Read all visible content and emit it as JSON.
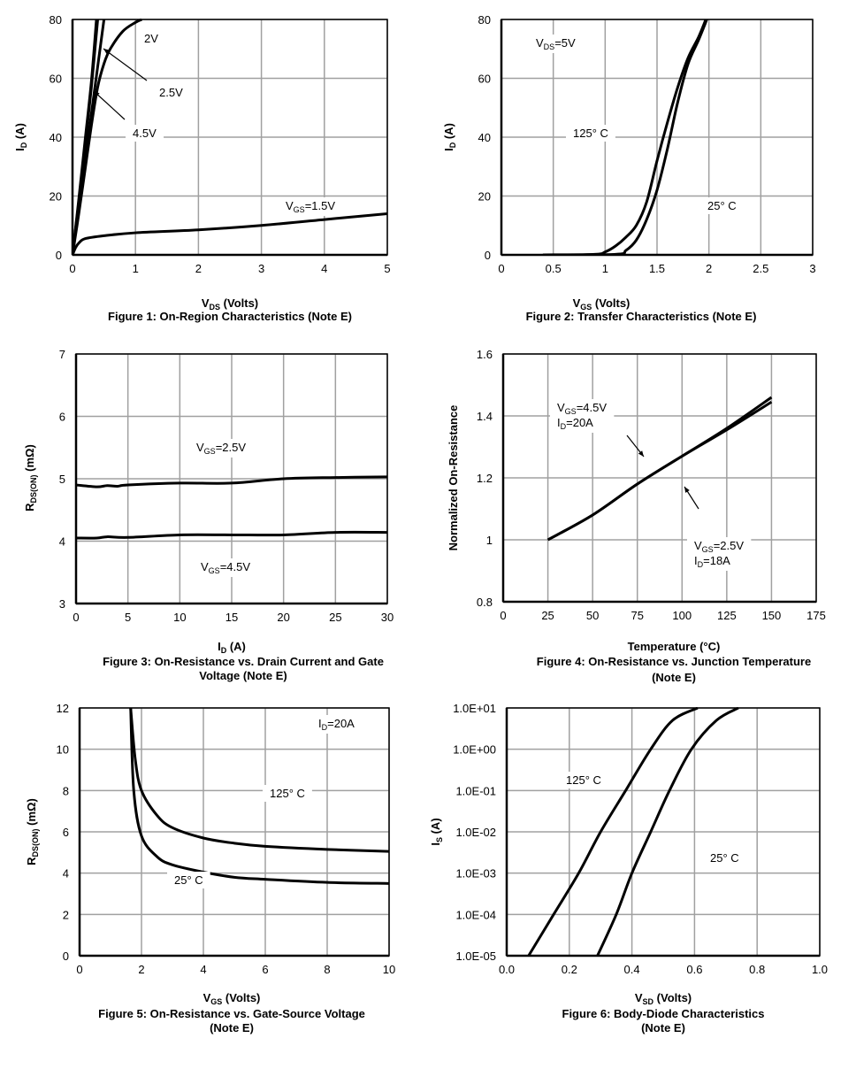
{
  "chart_data": [
    {
      "type": "line",
      "caption": [
        "Figure 1: On-Region Characteristics (Note E)"
      ],
      "xlabel": {
        "base": "V",
        "sub": "DS",
        "tail": " (Volts)"
      },
      "ylabel": {
        "base": "I",
        "sub": "D",
        "tail": " (A)"
      },
      "xlim": [
        0,
        5
      ],
      "ylim": [
        0,
        80
      ],
      "xticks": [
        0,
        1,
        2,
        3,
        4,
        5
      ],
      "yticks": [
        0,
        20,
        40,
        60,
        80
      ],
      "xtick_labels": [
        "0",
        "1",
        "2",
        "3",
        "4",
        "5"
      ],
      "ytick_labels": [
        "0",
        "20",
        "40",
        "60",
        "80"
      ],
      "grid": true,
      "series": [
        {
          "name": "4.5V",
          "x": [
            0,
            0.1,
            0.2,
            0.3,
            0.38
          ],
          "y": [
            0,
            19,
            39,
            59,
            80
          ]
        },
        {
          "x": [
            0,
            0.1,
            0.2,
            0.3,
            0.4
          ],
          "y": [
            0,
            18,
            37,
            57,
            80
          ]
        },
        {
          "name": "2.5V",
          "x": [
            0,
            0.1,
            0.2,
            0.3,
            0.4,
            0.5
          ],
          "y": [
            0,
            16,
            32,
            48,
            64,
            80
          ]
        },
        {
          "name": "2V",
          "x": [
            0,
            0.1,
            0.2,
            0.3,
            0.4,
            0.5,
            0.6,
            0.8,
            1.0,
            1.1
          ],
          "y": [
            0,
            14,
            29,
            44,
            57,
            65,
            70,
            76,
            79,
            80
          ]
        },
        {
          "name": "VGS=1.5V",
          "x": [
            0,
            0.05,
            0.1,
            0.2,
            0.5,
            1,
            2,
            3,
            4,
            5
          ],
          "y": [
            0,
            2.5,
            4,
            5.5,
            6.5,
            7.5,
            8.5,
            10,
            12,
            14
          ]
        }
      ],
      "annotations": [
        {
          "base": "2V"
        },
        {
          "base": "2.5V"
        },
        {
          "base": "4.5V"
        },
        {
          "base": "V",
          "sub": "GS",
          "tail": "=1.5V"
        }
      ]
    },
    {
      "type": "line",
      "caption": [
        "Figure 2: Transfer Characteristics (Note E)"
      ],
      "xlabel": {
        "base": "V",
        "sub": "GS",
        "tail": " (Volts)"
      },
      "ylabel": {
        "base": "I",
        "sub": "D",
        "tail": " (A)"
      },
      "xlim": [
        0,
        3
      ],
      "ylim": [
        0,
        80
      ],
      "xticks": [
        0,
        0.5,
        1,
        1.5,
        2,
        2.5,
        3
      ],
      "yticks": [
        0,
        20,
        40,
        60,
        80
      ],
      "xtick_labels": [
        "0",
        "0.5",
        "1",
        "1.5",
        "2",
        "2.5",
        "3"
      ],
      "ytick_labels": [
        "0",
        "20",
        "40",
        "60",
        "80"
      ],
      "grid": true,
      "series": [
        {
          "name": "125° C",
          "x": [
            0.4,
            0.9,
            1.0,
            1.1,
            1.2,
            1.3,
            1.4,
            1.5,
            1.6,
            1.7,
            1.8,
            1.9,
            1.97
          ],
          "y": [
            0,
            0.2,
            1,
            3,
            6,
            10,
            18,
            32,
            45,
            57,
            67,
            74,
            80
          ]
        },
        {
          "name": "25° C",
          "x": [
            0.4,
            1.1,
            1.2,
            1.3,
            1.4,
            1.5,
            1.6,
            1.7,
            1.8,
            1.9,
            1.98
          ],
          "y": [
            0,
            0.2,
            1.5,
            5,
            12,
            22,
            36,
            52,
            65,
            73,
            80
          ]
        }
      ],
      "annotations": [
        {
          "base": "V",
          "sub": "DS",
          "tail": "=5V"
        },
        {
          "base": "125° C"
        },
        {
          "base": "25° C"
        }
      ]
    },
    {
      "type": "line",
      "caption": [
        "Figure 3: On-Resistance vs. Drain Current and Gate",
        "Voltage (Note E)"
      ],
      "xlabel": {
        "base": "I",
        "sub": "D",
        "tail": " (A)"
      },
      "ylabel": {
        "base": "R",
        "sub": "DS(ON)",
        "tail": " (mΩ)"
      },
      "xlim": [
        0,
        30
      ],
      "ylim": [
        3,
        7
      ],
      "xticks": [
        0,
        5,
        10,
        15,
        20,
        25,
        30
      ],
      "yticks": [
        3,
        4,
        5,
        6,
        7
      ],
      "xtick_labels": [
        "0",
        "5",
        "10",
        "15",
        "20",
        "25",
        "30"
      ],
      "ytick_labels": [
        "3",
        "4",
        "5",
        "6",
        "7"
      ],
      "grid": true,
      "series": [
        {
          "name": "VGS=2.5V",
          "x": [
            0,
            2,
            3,
            4,
            5,
            10,
            15,
            20,
            25,
            30
          ],
          "y": [
            4.9,
            4.87,
            4.89,
            4.88,
            4.9,
            4.93,
            4.93,
            5.0,
            5.02,
            5.03
          ]
        },
        {
          "name": "VGS=4.5V",
          "x": [
            0,
            2,
            3,
            5,
            10,
            15,
            20,
            25,
            30
          ],
          "y": [
            4.05,
            4.05,
            4.07,
            4.06,
            4.1,
            4.1,
            4.1,
            4.14,
            4.14
          ]
        }
      ],
      "annotations": [
        {
          "base": "V",
          "sub": "GS",
          "tail": "=2.5V"
        },
        {
          "base": "V",
          "sub": "GS",
          "tail": "=4.5V"
        }
      ]
    },
    {
      "type": "line",
      "caption": [
        "Figure 4: On-Resistance vs. Junction Temperature",
        "(Note E)"
      ],
      "xlabel": {
        "base": "Temperature (°C)"
      },
      "ylabel": {
        "base": "Normalized On-Resistance"
      },
      "xlim": [
        0,
        175
      ],
      "ylim": [
        0.8,
        1.6
      ],
      "xticks": [
        0,
        25,
        50,
        75,
        100,
        125,
        150,
        175
      ],
      "yticks": [
        0.8,
        1,
        1.2,
        1.4,
        1.6
      ],
      "xtick_labels": [
        "0",
        "25",
        "50",
        "75",
        "100",
        "125",
        "150",
        "175"
      ],
      "ytick_labels": [
        "0.8",
        "1",
        "1.2",
        "1.4",
        "1.6"
      ],
      "grid": true,
      "series": [
        {
          "name": "VGS=4.5V ID=20A",
          "x": [
            25,
            50,
            75,
            100,
            125,
            150
          ],
          "y": [
            1.0,
            1.08,
            1.18,
            1.27,
            1.36,
            1.46
          ]
        },
        {
          "name": "VGS=2.5V ID=18A",
          "x": [
            25,
            50,
            75,
            100,
            125,
            150
          ],
          "y": [
            1.0,
            1.08,
            1.18,
            1.27,
            1.355,
            1.445
          ]
        }
      ],
      "annotations": [
        {
          "base": "V",
          "sub": "GS",
          "tail": "=4.5V"
        },
        {
          "base": "I",
          "sub": "D",
          "tail": "=20A"
        },
        {
          "base": "V",
          "sub": "GS",
          "tail": "=2.5V"
        },
        {
          "base": "I",
          "sub": "D",
          "tail": "=18A"
        }
      ]
    },
    {
      "type": "line",
      "caption": [
        "Figure 5: On-Resistance vs. Gate-Source Voltage",
        "(Note E)"
      ],
      "xlabel": {
        "base": "V",
        "sub": "GS",
        "tail": " (Volts)"
      },
      "ylabel": {
        "base": "R",
        "sub": "DS(ON)",
        "tail": " (mΩ)"
      },
      "xlim": [
        0,
        10
      ],
      "ylim": [
        0,
        12
      ],
      "xticks": [
        0,
        2,
        4,
        6,
        8,
        10
      ],
      "yticks": [
        0,
        2,
        4,
        6,
        8,
        10,
        12
      ],
      "xtick_labels": [
        "0",
        "2",
        "4",
        "6",
        "8",
        "10"
      ],
      "ytick_labels": [
        "0",
        "2",
        "4",
        "6",
        "8",
        "10",
        "12"
      ],
      "grid": true,
      "series": [
        {
          "name": "125° C",
          "x": [
            1.65,
            1.8,
            2,
            2.5,
            3,
            4,
            5,
            6,
            8,
            10
          ],
          "y": [
            12,
            9.5,
            8,
            6.8,
            6.2,
            5.7,
            5.45,
            5.3,
            5.15,
            5.05
          ]
        },
        {
          "name": "25° C",
          "x": [
            1.65,
            1.75,
            2,
            2.5,
            3,
            4,
            5,
            6,
            8,
            10
          ],
          "y": [
            12,
            8,
            5.8,
            4.8,
            4.4,
            4.05,
            3.8,
            3.7,
            3.55,
            3.5
          ]
        }
      ],
      "annotations": [
        {
          "base": "I",
          "sub": "D",
          "tail": "=20A"
        },
        {
          "base": "125° C"
        },
        {
          "base": "25° C"
        }
      ]
    },
    {
      "type": "line",
      "caption": [
        "Figure 6: Body-Diode Characteristics",
        "(Note E)"
      ],
      "xlabel": {
        "base": "V",
        "sub": "SD",
        "tail": " (Volts)"
      },
      "ylabel": {
        "base": "I",
        "sub": "S",
        "tail": " (A)"
      },
      "xlim": [
        0,
        1.0
      ],
      "ylim": [
        1e-05,
        10
      ],
      "yscale": "log",
      "xticks": [
        0,
        0.2,
        0.4,
        0.6,
        0.8,
        1.0
      ],
      "yticks": [
        1e-05,
        0.0001,
        0.001,
        0.01,
        0.1,
        1,
        10
      ],
      "xtick_labels": [
        "0.0",
        "0.2",
        "0.4",
        "0.6",
        "0.8",
        "1.0"
      ],
      "ytick_labels": [
        "1.0E-05",
        "1.0E-04",
        "1.0E-03",
        "1.0E-02",
        "1.0E-01",
        "1.0E+00",
        "1.0E+01"
      ],
      "grid": true,
      "series": [
        {
          "name": "125° C",
          "x": [
            0.07,
            0.15,
            0.23,
            0.3,
            0.38,
            0.46,
            0.53,
            0.61
          ],
          "y": [
            1e-05,
            0.0001,
            0.001,
            0.01,
            0.1,
            1,
            5,
            10
          ]
        },
        {
          "name": "25° C",
          "x": [
            0.29,
            0.35,
            0.4,
            0.46,
            0.52,
            0.59,
            0.67,
            0.74
          ],
          "y": [
            1e-05,
            0.0001,
            0.001,
            0.01,
            0.1,
            1,
            5,
            10
          ]
        }
      ],
      "annotations": [
        {
          "base": "125° C"
        },
        {
          "base": "25° C"
        }
      ]
    }
  ]
}
